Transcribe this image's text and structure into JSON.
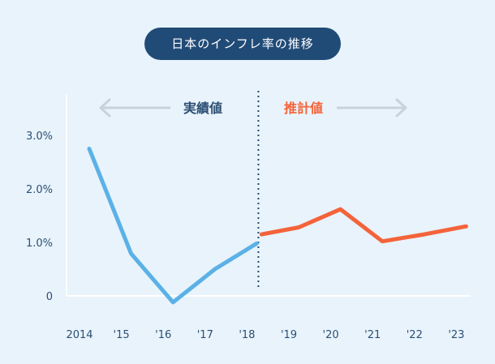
{
  "chart_data": {
    "type": "line",
    "title": "日本のインフレ率の推移",
    "categories": [
      "2014",
      "'15",
      "'16",
      "'17",
      "'18",
      "'19",
      "'20",
      "'21",
      "'22",
      "'23"
    ],
    "series": [
      {
        "name": "実績値",
        "color": "#5bb1e6",
        "x": [
          0,
          1,
          2,
          3,
          4
        ],
        "values": [
          2.75,
          0.79,
          -0.12,
          0.5,
          0.98
        ]
      },
      {
        "name": "推計値",
        "color": "#f4633a",
        "x": [
          4,
          5,
          6,
          7,
          8,
          9
        ],
        "values": [
          1.15,
          1.28,
          1.62,
          1.02,
          1.15,
          1.3
        ]
      }
    ],
    "ylim": [
      0,
      3.0
    ],
    "yticks": [
      {
        "value": 0,
        "label": "0"
      },
      {
        "value": 1.0,
        "label": "1.0%"
      },
      {
        "value": 2.0,
        "label": "2.0%"
      },
      {
        "value": 3.0,
        "label": "3.0%"
      }
    ],
    "divider_at": 4,
    "annotations": {
      "actual": {
        "label": "実績値",
        "color": "#2c4f74"
      },
      "forecast": {
        "label": "推計値",
        "color": "#f4633a"
      }
    },
    "grid": false
  }
}
